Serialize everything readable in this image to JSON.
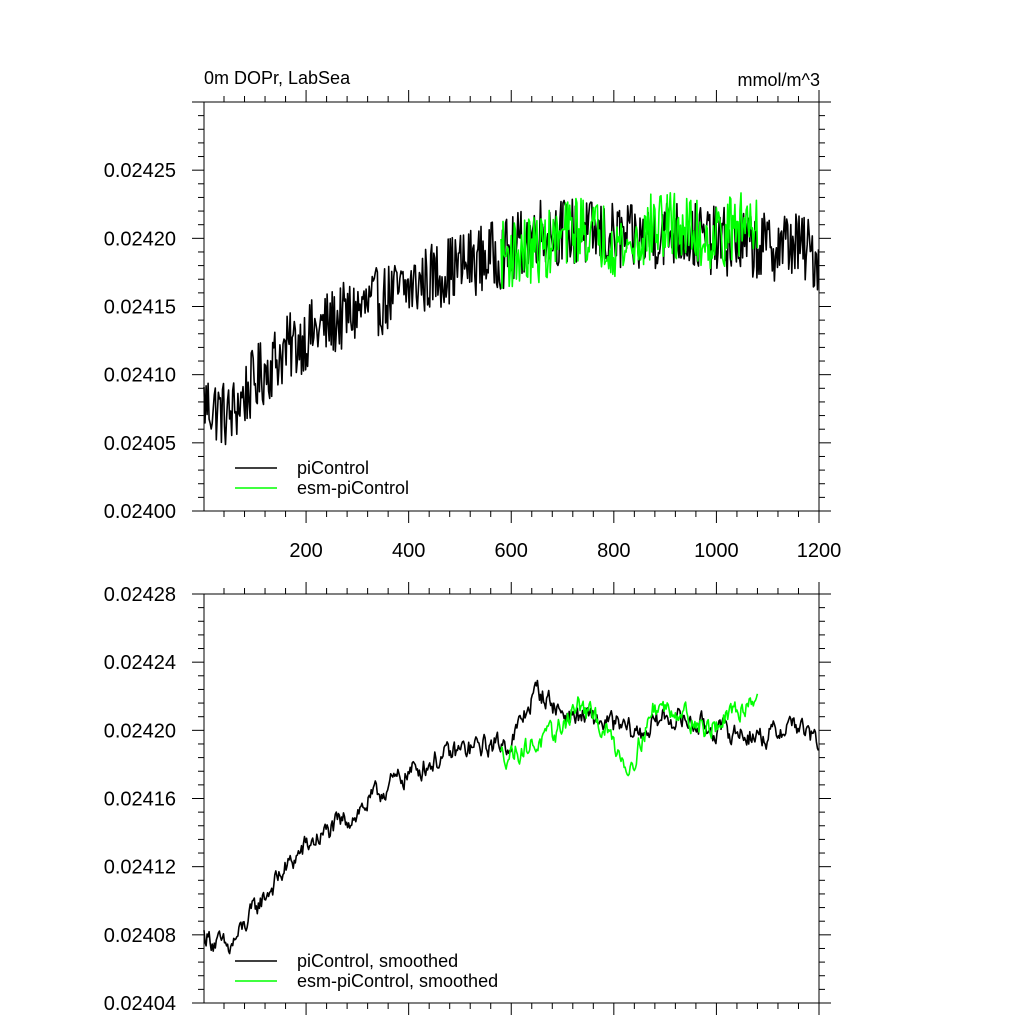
{
  "chart_data": [
    {
      "type": "line",
      "title": "0m DOPr, LabSea",
      "units": "mmol/m^3",
      "xlim": [
        1,
        1200
      ],
      "ylim": [
        0.024,
        0.0243
      ],
      "x_ticks": [
        200,
        400,
        600,
        800,
        1000,
        1200
      ],
      "x_tick_labels": [
        "200",
        "400",
        "600",
        "800",
        "1000",
        "1200"
      ],
      "y_ticks": [
        0.024,
        0.02405,
        0.0241,
        0.02415,
        0.0242,
        0.02425
      ],
      "y_tick_labels": [
        "0.02400",
        "0.02405",
        "0.02410",
        "0.02415",
        "0.02420",
        "0.02425"
      ],
      "legend_position": "bottom-left",
      "series": [
        {
          "name": "piControl",
          "color": "#000000",
          "x": [
            1,
            50,
            100,
            150,
            200,
            250,
            300,
            350,
            400,
            450,
            500,
            550,
            600,
            650,
            700,
            750,
            800,
            850,
            900,
            950,
            1000,
            1050,
            1100,
            1150,
            1200
          ],
          "values": [
            0.02408,
            0.024069,
            0.024095,
            0.024115,
            0.024128,
            0.024138,
            0.024147,
            0.024155,
            0.024163,
            0.024173,
            0.02418,
            0.024186,
            0.02419,
            0.024206,
            0.024205,
            0.024203,
            0.024201,
            0.024198,
            0.024205,
            0.024202,
            0.024198,
            0.024196,
            0.024193,
            0.024197,
            0.024185
          ]
        },
        {
          "name": "esm-piControl",
          "color": "#00ff00",
          "x": [
            580,
            630,
            680,
            730,
            780,
            830,
            880,
            930,
            980,
            1030,
            1080
          ],
          "values": [
            0.024188,
            0.02419,
            0.024196,
            0.024208,
            0.024202,
            0.024192,
            0.02421,
            0.024208,
            0.0242,
            0.024206,
            0.024218
          ]
        }
      ]
    },
    {
      "type": "line",
      "xlim": [
        1,
        1200
      ],
      "ylim": [
        0.02404,
        0.02428
      ],
      "x_ticks": [
        200,
        400,
        600,
        800,
        1000,
        1200
      ],
      "y_ticks": [
        0.02404,
        0.02408,
        0.02412,
        0.02416,
        0.0242,
        0.02424,
        0.02428
      ],
      "y_tick_labels": [
        "0.02404",
        "0.02408",
        "0.02412",
        "0.02416",
        "0.02420",
        "0.02424",
        "0.02428"
      ],
      "legend_position": "bottom-left",
      "series": [
        {
          "name": "piControl, smoothed",
          "color": "#000000",
          "x": [
            1,
            50,
            100,
            150,
            200,
            250,
            300,
            350,
            400,
            450,
            500,
            550,
            600,
            650,
            700,
            750,
            800,
            850,
            900,
            950,
            1000,
            1050,
            1100,
            1150,
            1200
          ],
          "values": [
            0.02408,
            0.024071,
            0.024095,
            0.024115,
            0.024132,
            0.024142,
            0.024152,
            0.024165,
            0.024175,
            0.024182,
            0.024188,
            0.024191,
            0.024193,
            0.024224,
            0.02421,
            0.024207,
            0.024203,
            0.024198,
            0.024208,
            0.024205,
            0.0242,
            0.024198,
            0.024196,
            0.024205,
            0.024192
          ]
        },
        {
          "name": "esm-piControl, smoothed",
          "color": "#00ff00",
          "x": [
            580,
            630,
            680,
            730,
            780,
            830,
            880,
            930,
            980,
            1030,
            1080
          ],
          "values": [
            0.024185,
            0.02419,
            0.024196,
            0.024215,
            0.024202,
            0.024178,
            0.024214,
            0.024212,
            0.0242,
            0.024208,
            0.024222
          ]
        }
      ]
    }
  ]
}
